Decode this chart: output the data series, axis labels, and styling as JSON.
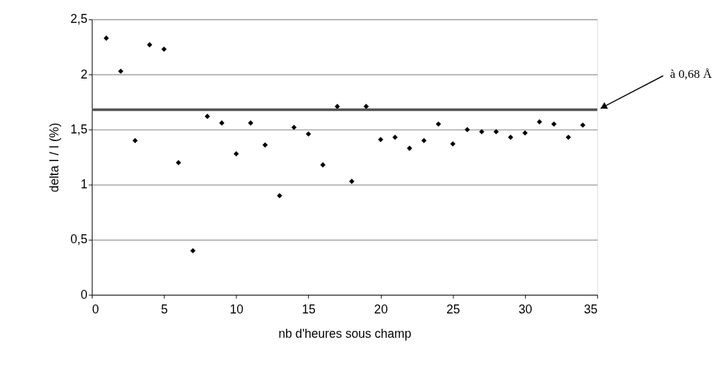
{
  "chart_data": {
    "type": "scatter",
    "xlabel": "nb d'heures sous champ",
    "ylabel": "delta I / I (%)",
    "x": [
      1,
      2,
      3,
      4,
      5,
      6,
      7,
      8,
      9,
      10,
      11,
      12,
      13,
      14,
      15,
      16,
      17,
      18,
      19,
      20,
      21,
      22,
      23,
      24,
      25,
      26,
      27,
      28,
      29,
      30,
      31,
      32,
      33,
      34
    ],
    "series": [
      {
        "color": "#000000",
        "values": [
          2.33,
          2.03,
          1.4,
          2.27,
          2.23,
          1.2,
          0.4,
          1.62,
          1.56,
          1.28,
          1.56,
          1.36,
          0.9,
          1.52,
          1.46,
          1.18,
          1.71,
          1.03,
          1.71,
          1.41,
          1.43,
          1.33,
          1.4,
          1.55,
          1.37,
          1.5,
          1.48,
          1.48,
          1.43,
          1.47,
          1.57,
          1.55,
          1.43,
          1.54
        ]
      }
    ],
    "xlim": [
      0,
      35
    ],
    "xticks": [
      0,
      5,
      10,
      15,
      20,
      25,
      30,
      35
    ],
    "ylim": [
      0,
      2.5
    ],
    "yticks": [
      {
        "value": 0,
        "label": "0"
      },
      {
        "value": 0.5,
        "label": "0,5"
      },
      {
        "value": 1,
        "label": "1"
      },
      {
        "value": 1.5,
        "label": "1,5"
      },
      {
        "value": 2,
        "label": "2"
      },
      {
        "value": 2.5,
        "label": "2,5"
      }
    ],
    "ref_lines": [
      {
        "axis": "y",
        "value": 1.68,
        "label": "à 0,68 Å",
        "color": "#555555"
      }
    ],
    "grid": "y",
    "marker": "diamond"
  }
}
